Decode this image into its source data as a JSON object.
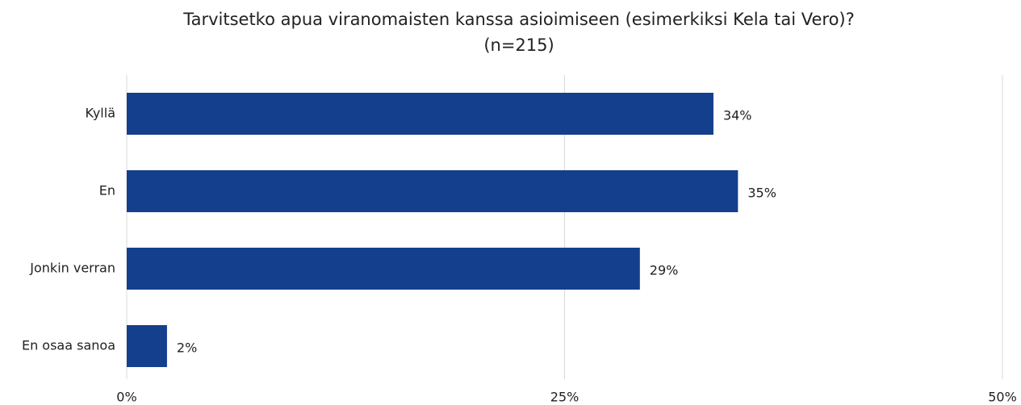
{
  "chart_data": {
    "type": "bar",
    "orientation": "horizontal",
    "title": "Tarvitsetko apua viranomaisten kanssa asioimiseen (esimerkiksi Kela tai Vero)?",
    "subtitle": "(n=215)",
    "categories": [
      "Kyllä",
      "En",
      "Jonkin verran",
      "En osaa sanoa"
    ],
    "values": [
      33.5,
      34.9,
      29.3,
      2.3
    ],
    "value_labels": [
      "34%",
      "35%",
      "29%",
      "2%"
    ],
    "color": "#143f8c",
    "xlim": [
      0,
      50
    ],
    "xticks": [
      {
        "value": 0,
        "label": "0%"
      },
      {
        "value": 25,
        "label": "25%"
      },
      {
        "value": 50,
        "label": "50%"
      }
    ],
    "grid": true
  }
}
